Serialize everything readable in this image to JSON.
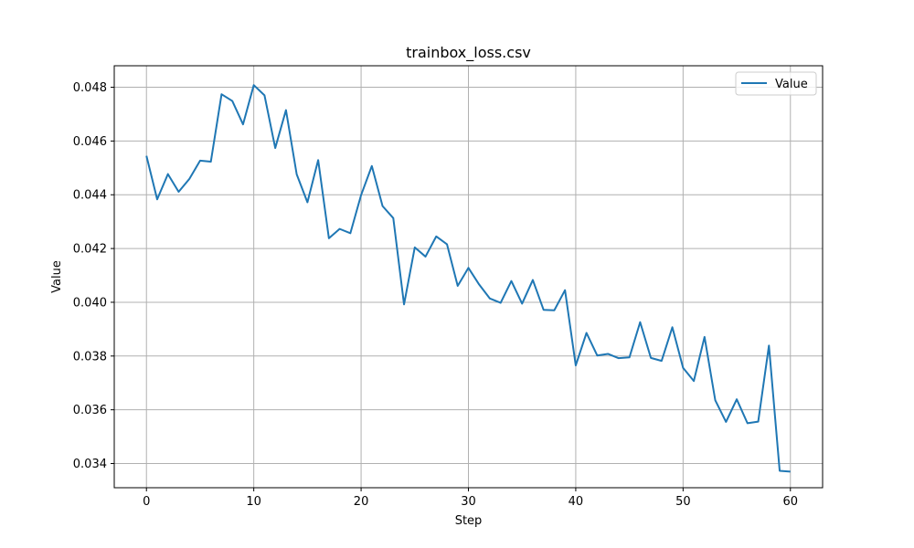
{
  "chart_data": {
    "type": "line",
    "title": "trainbox_loss.csv",
    "xlabel": "Step",
    "ylabel": "Value",
    "xlim": [
      -3,
      63
    ],
    "ylim": [
      0.0331,
      0.0488
    ],
    "xticks": [
      0,
      10,
      20,
      30,
      40,
      50,
      60
    ],
    "yticks": [
      0.034,
      0.036,
      0.038,
      0.04,
      0.042,
      0.044,
      0.046,
      0.048
    ],
    "grid": true,
    "legend_position": "upper-right",
    "colors": {
      "series": "#1f77b4",
      "grid": "#b0b0b0"
    },
    "series": [
      {
        "name": "Value",
        "x": [
          0,
          1,
          2,
          3,
          4,
          5,
          6,
          7,
          8,
          9,
          10,
          11,
          12,
          13,
          14,
          15,
          16,
          17,
          18,
          19,
          20,
          21,
          22,
          23,
          24,
          25,
          26,
          27,
          28,
          29,
          30,
          31,
          32,
          33,
          34,
          35,
          36,
          37,
          38,
          39,
          40,
          41,
          42,
          43,
          44,
          45,
          46,
          47,
          48,
          49,
          50,
          51,
          52,
          53,
          54,
          55,
          56,
          57,
          58,
          59,
          60
        ],
        "y": [
          0.04545,
          0.04383,
          0.04477,
          0.04411,
          0.04459,
          0.04527,
          0.04523,
          0.04774,
          0.04749,
          0.04662,
          0.04808,
          0.0477,
          0.04574,
          0.04715,
          0.04476,
          0.04372,
          0.04529,
          0.04238,
          0.04273,
          0.04257,
          0.04399,
          0.04507,
          0.04358,
          0.04313,
          0.03992,
          0.04204,
          0.0417,
          0.04245,
          0.04216,
          0.04061,
          0.04128,
          0.04066,
          0.04014,
          0.03998,
          0.04079,
          0.03995,
          0.04083,
          0.03972,
          0.0397,
          0.04045,
          0.03765,
          0.03886,
          0.03802,
          0.03808,
          0.03792,
          0.03795,
          0.03926,
          0.03793,
          0.03782,
          0.03907,
          0.03756,
          0.03707,
          0.03871,
          0.03635,
          0.03555,
          0.03639,
          0.0355,
          0.03556,
          0.03839,
          0.03373,
          0.0337
        ]
      }
    ]
  }
}
